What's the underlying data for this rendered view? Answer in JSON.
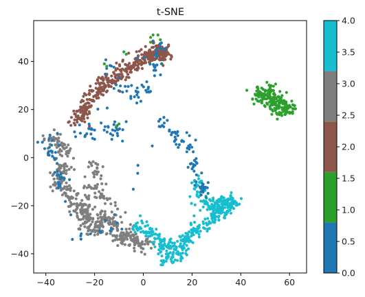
{
  "chart_data": {
    "type": "scatter",
    "title": "t-SNE",
    "xlabel": "",
    "ylabel": "",
    "xlim": [
      -45,
      67
    ],
    "ylim": [
      -48,
      57
    ],
    "xticks": [
      -40,
      -20,
      0,
      20,
      40,
      60
    ],
    "xtick_labels": [
      "−40",
      "−20",
      "0",
      "20",
      "40",
      "60"
    ],
    "yticks": [
      -40,
      -20,
      0,
      20,
      40
    ],
    "ytick_labels": [
      "−40",
      "−20",
      "0",
      "20",
      "40"
    ],
    "grid": false,
    "colormap": "tab10",
    "clusters": [
      {
        "label_value": 0,
        "color": "#1f77b4",
        "polyline": [
          [
            -14,
            37
          ],
          [
            -8,
            29
          ],
          [
            -3,
            26
          ],
          [
            3,
            28
          ],
          [
            5,
            40
          ],
          [
            7,
            47
          ],
          [
            -28,
            11
          ],
          [
            -22,
            10
          ],
          [
            -18,
            11
          ],
          [
            -12,
            11
          ],
          [
            -10,
            12
          ],
          [
            -40,
            7
          ],
          [
            -38,
            2
          ],
          [
            -33,
            -12
          ],
          [
            -35,
            -8
          ],
          [
            -25,
            -32
          ],
          [
            -12,
            -28
          ],
          [
            7,
            14
          ],
          [
            12,
            10
          ],
          [
            15,
            7
          ],
          [
            19,
            4
          ],
          [
            21,
            -3
          ],
          [
            23,
            -8
          ],
          [
            25,
            -13
          ]
        ],
        "jitter": 3.0,
        "n": 240
      },
      {
        "label_value": 1,
        "color": "#2ca02c",
        "polyline": [
          [
            47,
            26
          ],
          [
            50,
            24
          ],
          [
            54,
            22
          ],
          [
            57,
            20
          ],
          [
            60,
            20
          ],
          [
            52,
            28
          ]
        ],
        "jitter": 3.2,
        "n": 200,
        "extras": [
          [
            4,
            51
          ],
          [
            6,
            51
          ],
          [
            3,
            50
          ],
          [
            7,
            49
          ],
          [
            -8,
            44
          ],
          [
            -7,
            43
          ],
          [
            -15,
            38
          ],
          [
            -16,
            39
          ],
          [
            -10,
            14
          ],
          [
            -11,
            13
          ],
          [
            3,
            48
          ]
        ]
      },
      {
        "label_value": 2,
        "color": "#8c564b",
        "polyline": [
          [
            -27,
            15
          ],
          [
            -24,
            20
          ],
          [
            -20,
            26
          ],
          [
            -16,
            31
          ],
          [
            -11,
            34
          ],
          [
            -7,
            37
          ],
          [
            -2,
            40
          ],
          [
            2,
            42
          ],
          [
            6,
            45
          ],
          [
            8,
            43
          ]
        ],
        "jitter": 3.2,
        "n": 420
      },
      {
        "label_value": 3,
        "color": "#7f7f7f",
        "polyline": [
          [
            -37,
            8
          ],
          [
            -32,
            3
          ],
          [
            -33,
            -5
          ],
          [
            -35,
            -10
          ],
          [
            -31,
            -15
          ],
          [
            -27,
            -20
          ],
          [
            -24,
            -26
          ],
          [
            -20,
            -30
          ],
          [
            -16,
            -25
          ],
          [
            -12,
            -29
          ],
          [
            -8,
            -33
          ],
          [
            -4,
            -35
          ],
          [
            0,
            -36
          ],
          [
            -17,
            -17
          ],
          [
            -20,
            -5
          ],
          [
            -24,
            -22
          ]
        ],
        "jitter": 3.2,
        "n": 520
      },
      {
        "label_value": 4,
        "color": "#17becf",
        "polyline": [
          [
            -2,
            -28
          ],
          [
            3,
            -31
          ],
          [
            8,
            -36
          ],
          [
            13,
            -37
          ],
          [
            18,
            -34
          ],
          [
            21,
            -30
          ],
          [
            25,
            -29
          ],
          [
            29,
            -25
          ],
          [
            30,
            -20
          ],
          [
            34,
            -18
          ],
          [
            37,
            -19
          ],
          [
            33,
            -23
          ],
          [
            25,
            -19
          ],
          [
            22,
            -10
          ],
          [
            16,
            -40
          ],
          [
            10,
            -42
          ]
        ],
        "jitter": 2.8,
        "n": 440
      }
    ],
    "colorbar": {
      "range": [
        0.0,
        4.0
      ],
      "ticks": [
        0.0,
        0.5,
        1.0,
        1.5,
        2.0,
        2.5,
        3.0,
        3.5,
        4.0
      ],
      "tick_labels": [
        "0.0",
        "0.5",
        "1.0",
        "1.5",
        "2.0",
        "2.5",
        "3.0",
        "3.5",
        "4.0"
      ],
      "segments": [
        {
          "color": "#1f77b4",
          "from": 0.0,
          "to": 0.8
        },
        {
          "color": "#2ca02c",
          "from": 0.8,
          "to": 1.6
        },
        {
          "color": "#8c564b",
          "from": 1.6,
          "to": 2.4
        },
        {
          "color": "#7f7f7f",
          "from": 2.4,
          "to": 3.2
        },
        {
          "color": "#17becf",
          "from": 3.2,
          "to": 4.0
        }
      ]
    }
  }
}
